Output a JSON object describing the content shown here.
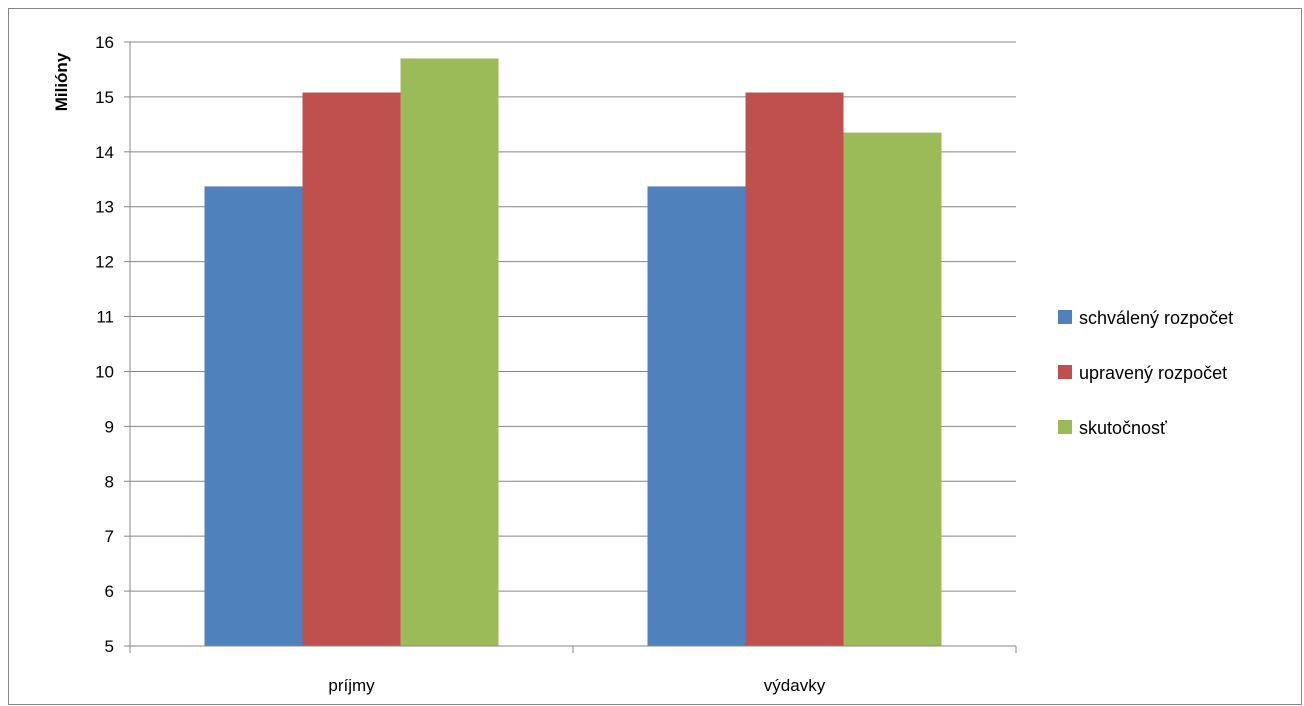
{
  "chart_data": {
    "type": "bar",
    "title": "",
    "xlabel": "",
    "ylabel": "Milióny",
    "categories": [
      "príjmy",
      "výdavky"
    ],
    "ylim": [
      5,
      16
    ],
    "yticks": [
      5,
      6,
      7,
      8,
      9,
      10,
      11,
      12,
      13,
      14,
      15,
      16
    ],
    "grid": true,
    "legend_position": "right",
    "series": [
      {
        "name": "schválený rozpočet",
        "color": "#4f81bd",
        "values": [
          13.37,
          13.37
        ]
      },
      {
        "name": "upravený rozpočet",
        "color": "#c0504d",
        "values": [
          15.08,
          15.08
        ]
      },
      {
        "name": "skutočnosť",
        "color": "#9bbb59",
        "values": [
          15.7,
          14.35
        ]
      }
    ]
  }
}
